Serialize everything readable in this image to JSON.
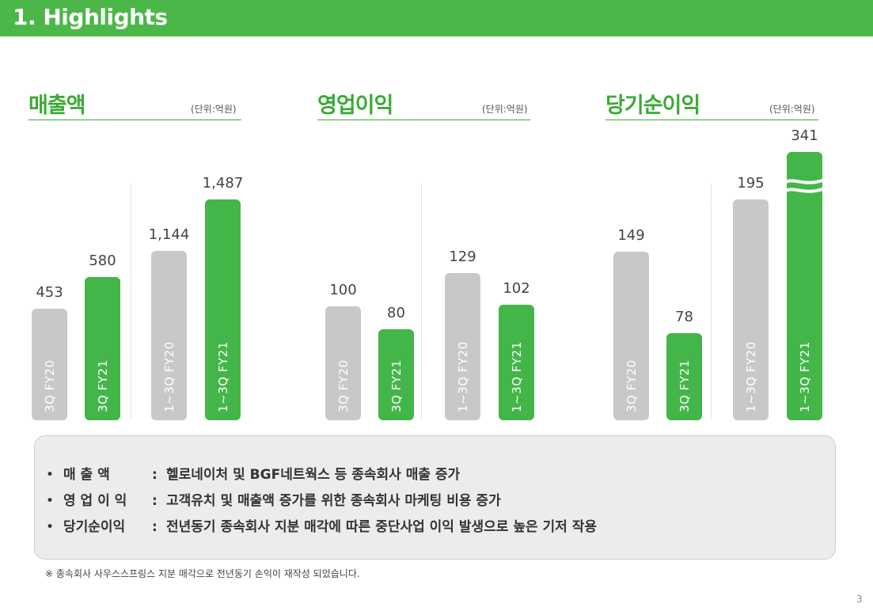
{
  "header": {
    "title": "1. Highlights"
  },
  "unit_label": "(단위:억원)",
  "chart_data": [
    {
      "type": "bar",
      "title": "매출액",
      "categories": [
        "3Q FY20",
        "3Q FY21",
        "1~3Q FY20",
        "1~3Q FY21"
      ],
      "values": [
        453,
        580,
        1144,
        1487
      ],
      "value_labels": [
        "453",
        "580",
        "1,144",
        "1,487"
      ],
      "colors": [
        "#c8c8c8",
        "#44b649",
        "#c8c8c8",
        "#44b649"
      ],
      "axis_break_on": []
    },
    {
      "type": "bar",
      "title": "영업이익",
      "categories": [
        "3Q FY20",
        "3Q FY21",
        "1~3Q FY20",
        "1~3Q FY21"
      ],
      "values": [
        100,
        80,
        129,
        102
      ],
      "value_labels": [
        "100",
        "80",
        "129",
        "102"
      ],
      "colors": [
        "#c8c8c8",
        "#44b649",
        "#c8c8c8",
        "#44b649"
      ],
      "axis_break_on": []
    },
    {
      "type": "bar",
      "title": "당기순이익",
      "categories": [
        "3Q FY20",
        "3Q FY21",
        "1~3Q FY20",
        "1~3Q FY21"
      ],
      "values": [
        149,
        78,
        195,
        341
      ],
      "value_labels": [
        "149",
        "78",
        "195",
        "341"
      ],
      "colors": [
        "#c8c8c8",
        "#44b649",
        "#c8c8c8",
        "#44b649"
      ],
      "axis_break_on": [
        3
      ]
    }
  ],
  "summary": {
    "items": [
      {
        "label": "매 출 액",
        "text": "헬로네이처 및 BGF네트웍스 등 종속회사 매출 증가"
      },
      {
        "label": "영 업 이 익",
        "text": "고객유치 및 매출액 증가를 위한 종속회사 마케팅 비용 증가"
      },
      {
        "label": "당기순이익",
        "text": "전년동기 종속회사 지분 매각에 따른 중단사업 이익 발생으로 높은 기저 작용"
      }
    ]
  },
  "footnote": "※ 종속회사 사우스스프링스 지분 매각으로 전년동기 손익이 재작성 되었습니다.",
  "page_number": "3"
}
